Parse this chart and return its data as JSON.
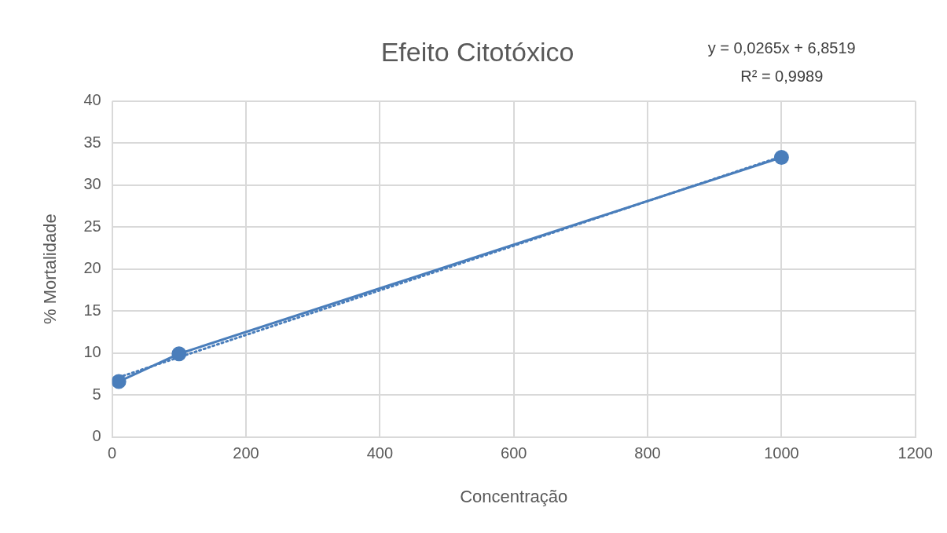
{
  "chart_data": {
    "type": "line",
    "title": "Efeito Citotóxico",
    "xlabel": "Concentração",
    "ylabel": "% Mortalidade",
    "x": [
      10,
      100,
      1000
    ],
    "series": [
      {
        "color": "#4a7ebb",
        "values": [
          6.6,
          9.9,
          33.3
        ],
        "marker": "circle",
        "line_style": "solid"
      },
      {
        "type": "line",
        "color": "#4a7ebb",
        "x": [
          10,
          1000
        ],
        "values": [
          7.1,
          33.4
        ],
        "marker": "none",
        "line_style": "dotted"
      }
    ],
    "xlim": [
      0,
      1200
    ],
    "xticks": [
      0,
      200,
      400,
      600,
      800,
      1000,
      1200
    ],
    "ylim": [
      0,
      40
    ],
    "yticks": [
      0,
      5,
      10,
      15,
      20,
      25,
      30,
      35,
      40
    ],
    "grid": true,
    "legend": false,
    "annotations": [
      "y = 0,0265x + 6,8519",
      "R² = 0,9989"
    ]
  }
}
